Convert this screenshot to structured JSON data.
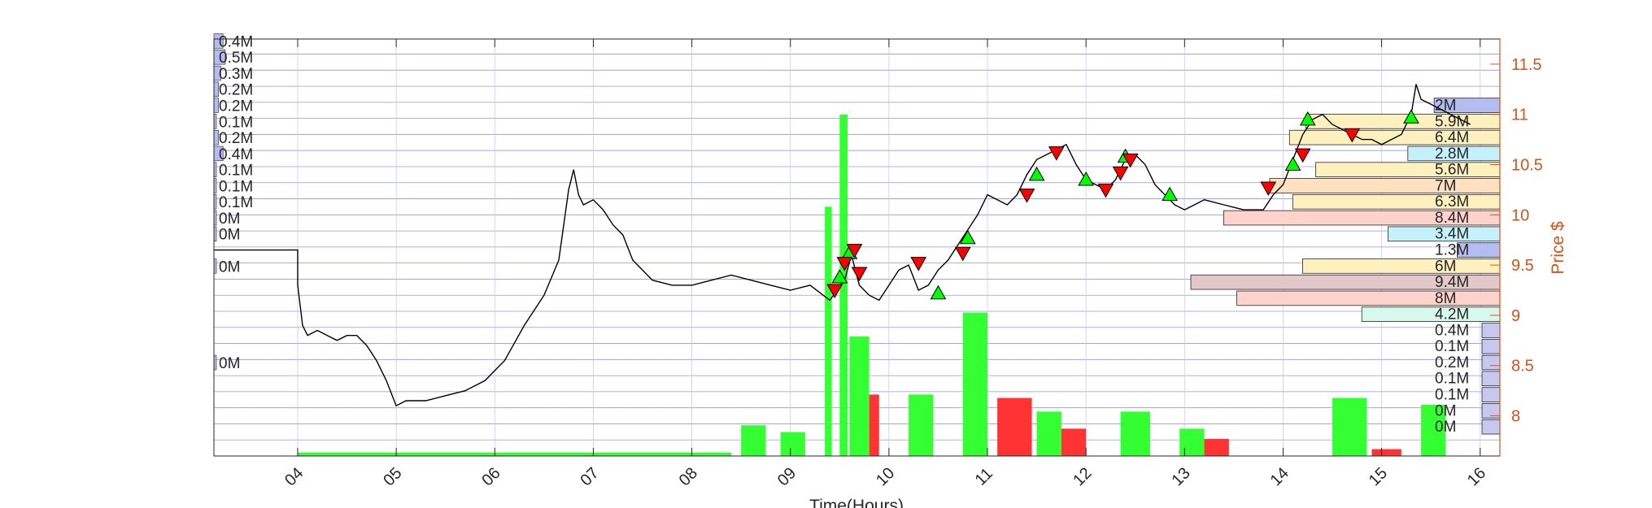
{
  "chart_data": {
    "type": "line",
    "xlabel": "Time(Hours)",
    "ylabel": "Price $",
    "xlim": [
      3.15,
      16.2
    ],
    "ylim": [
      7.6,
      11.75
    ],
    "grid": "horizontal",
    "x_ticks": [
      "04",
      "05",
      "06",
      "07",
      "08",
      "09",
      "10",
      "11",
      "12",
      "13",
      "14",
      "15",
      "16"
    ],
    "y_ticks": [
      8,
      8.5,
      9,
      9.5,
      10,
      10.5,
      11,
      11.5
    ],
    "colors": {
      "price_line": "#000000",
      "axis_right": "#d95319",
      "grid": "#8080ff",
      "buy_marker": "#00ff00",
      "sell_marker": "#ff0000",
      "volume_up": "#33ff33",
      "volume_down": "#ff3333"
    },
    "price_series": {
      "name": "",
      "x": [
        3.15,
        4.0,
        4.0,
        4.05,
        4.1,
        4.2,
        4.3,
        4.4,
        4.5,
        4.6,
        4.7,
        4.8,
        4.9,
        5.0,
        5.1,
        5.3,
        5.5,
        5.7,
        5.9,
        6.1,
        6.3,
        6.5,
        6.65,
        6.75,
        6.8,
        6.85,
        6.9,
        7.0,
        7.1,
        7.2,
        7.3,
        7.4,
        7.6,
        7.8,
        8.0,
        8.2,
        8.4,
        8.6,
        8.8,
        9.0,
        9.2,
        9.4,
        9.55,
        9.62,
        9.7,
        9.8,
        9.9,
        10.0,
        10.1,
        10.2,
        10.3,
        10.4,
        10.5,
        10.6,
        10.7,
        10.8,
        10.9,
        11.0,
        11.1,
        11.2,
        11.3,
        11.4,
        11.5,
        11.6,
        11.7,
        11.8,
        11.9,
        12.0,
        12.1,
        12.2,
        12.3,
        12.4,
        12.5,
        12.6,
        12.7,
        12.8,
        12.9,
        13.0,
        13.1,
        13.2,
        13.4,
        13.6,
        13.8,
        13.9,
        14.0,
        14.1,
        14.2,
        14.3,
        14.4,
        14.5,
        14.6,
        14.7,
        14.8,
        14.9,
        15.0,
        15.1,
        15.2,
        15.3,
        15.35,
        15.4,
        15.5,
        15.6,
        15.7,
        15.8,
        15.9
      ],
      "y": [
        9.65,
        9.65,
        9.3,
        8.9,
        8.8,
        8.85,
        8.8,
        8.75,
        8.8,
        8.8,
        8.7,
        8.55,
        8.35,
        8.1,
        8.15,
        8.15,
        8.2,
        8.25,
        8.35,
        8.55,
        8.9,
        9.2,
        9.55,
        10.25,
        10.45,
        10.2,
        10.1,
        10.15,
        10.05,
        9.9,
        9.8,
        9.55,
        9.35,
        9.3,
        9.3,
        9.35,
        9.4,
        9.35,
        9.3,
        9.25,
        9.3,
        9.15,
        9.35,
        9.6,
        9.3,
        9.2,
        9.15,
        9.3,
        9.45,
        9.5,
        9.25,
        9.3,
        9.45,
        9.55,
        9.7,
        9.85,
        10.0,
        10.2,
        10.15,
        10.1,
        10.2,
        10.4,
        10.55,
        10.6,
        10.65,
        10.7,
        10.5,
        10.35,
        10.3,
        10.25,
        10.35,
        10.55,
        10.6,
        10.5,
        10.3,
        10.2,
        10.1,
        10.05,
        10.1,
        10.15,
        10.1,
        10.05,
        10.05,
        10.2,
        10.3,
        10.55,
        10.8,
        10.95,
        11.0,
        10.9,
        10.85,
        10.8,
        10.75,
        10.75,
        10.7,
        10.75,
        10.8,
        11.0,
        11.3,
        11.15,
        11.1,
        11.05,
        11.0,
        10.95,
        10.9
      ]
    },
    "buy_signals": {
      "x": [
        9.5,
        9.6,
        10.5,
        10.8,
        11.5,
        12.0,
        12.4,
        12.85,
        14.1,
        14.25,
        15.3
      ],
      "y": [
        9.38,
        9.62,
        9.22,
        9.77,
        10.4,
        10.35,
        10.58,
        10.2,
        10.5,
        10.95,
        10.97
      ]
    },
    "sell_signals": {
      "x": [
        9.45,
        9.55,
        9.65,
        9.7,
        10.3,
        10.75,
        11.4,
        11.7,
        12.2,
        12.35,
        12.45,
        13.85,
        14.2,
        14.7
      ],
      "y": [
        9.25,
        9.52,
        9.65,
        9.42,
        9.52,
        9.62,
        10.2,
        10.62,
        10.25,
        10.42,
        10.55,
        10.27,
        10.6,
        10.8
      ]
    },
    "volume_bars": [
      {
        "start": 4.0,
        "end": 8.4,
        "level": 0.01,
        "color": "#33ff33"
      },
      {
        "start": 8.5,
        "end": 8.75,
        "level": 0.09,
        "color": "#33ff33"
      },
      {
        "start": 8.9,
        "end": 9.15,
        "level": 0.07,
        "color": "#33ff33"
      },
      {
        "start": 9.35,
        "end": 9.42,
        "level": 0.73,
        "color": "#33ff33"
      },
      {
        "start": 9.5,
        "end": 9.58,
        "level": 1.0,
        "color": "#33ff33"
      },
      {
        "start": 9.6,
        "end": 9.8,
        "level": 0.35,
        "color": "#33ff33"
      },
      {
        "start": 9.8,
        "end": 9.9,
        "level": 0.18,
        "color": "#ff3333"
      },
      {
        "start": 10.2,
        "end": 10.45,
        "level": 0.18,
        "color": "#33ff33"
      },
      {
        "start": 10.75,
        "end": 11.0,
        "level": 0.42,
        "color": "#33ff33"
      },
      {
        "start": 11.1,
        "end": 11.45,
        "level": 0.17,
        "color": "#ff3333"
      },
      {
        "start": 11.5,
        "end": 11.75,
        "level": 0.13,
        "color": "#33ff33"
      },
      {
        "start": 11.75,
        "end": 12.0,
        "level": 0.08,
        "color": "#ff3333"
      },
      {
        "start": 12.35,
        "end": 12.65,
        "level": 0.13,
        "color": "#33ff33"
      },
      {
        "start": 12.95,
        "end": 13.2,
        "level": 0.08,
        "color": "#33ff33"
      },
      {
        "start": 13.2,
        "end": 13.45,
        "level": 0.05,
        "color": "#ff3333"
      },
      {
        "start": 14.5,
        "end": 14.85,
        "level": 0.17,
        "color": "#33ff33"
      },
      {
        "start": 14.9,
        "end": 15.2,
        "level": 0.02,
        "color": "#ff3333"
      },
      {
        "start": 15.4,
        "end": 15.65,
        "level": 0.15,
        "color": "#33ff33"
      }
    ],
    "volume_profile_left": [
      {
        "price": 11.73,
        "value": 0.4,
        "label": "0.4M"
      },
      {
        "price": 11.57,
        "value": 0.5,
        "label": "0.5M"
      },
      {
        "price": 11.41,
        "value": 0.3,
        "label": "0.3M"
      },
      {
        "price": 11.25,
        "value": 0.2,
        "label": "0.2M"
      },
      {
        "price": 11.09,
        "value": 0.2,
        "label": "0.2M"
      },
      {
        "price": 10.93,
        "value": 0.1,
        "label": "0.1M"
      },
      {
        "price": 10.77,
        "value": 0.2,
        "label": "0.2M"
      },
      {
        "price": 10.61,
        "value": 0.4,
        "label": "0.4M"
      },
      {
        "price": 10.45,
        "value": 0.1,
        "label": "0.1M"
      },
      {
        "price": 10.29,
        "value": 0.1,
        "label": "0.1M"
      },
      {
        "price": 10.13,
        "value": 0.1,
        "label": "0.1M"
      },
      {
        "price": 9.97,
        "value": 0.0,
        "label": "0M"
      },
      {
        "price": 9.81,
        "value": 0.0,
        "label": "0M"
      },
      {
        "price": 9.49,
        "value": 0.0,
        "label": "0M"
      },
      {
        "price": 8.53,
        "value": 0.0,
        "label": "0M"
      }
    ],
    "volume_profile_right": [
      {
        "price": 11.09,
        "value": 2.0,
        "label": "2M",
        "color": "#b4bcf0"
      },
      {
        "price": 10.93,
        "value": 5.9,
        "label": "5.9M",
        "color": "#fff1bf"
      },
      {
        "price": 10.77,
        "value": 6.4,
        "label": "6.4M",
        "color": "#fff1bf"
      },
      {
        "price": 10.61,
        "value": 2.8,
        "label": "2.8M",
        "color": "#c4f1fb"
      },
      {
        "price": 10.45,
        "value": 5.6,
        "label": "5.6M",
        "color": "#fff1bf"
      },
      {
        "price": 10.29,
        "value": 7.0,
        "label": "7M",
        "color": "#ffe0c0"
      },
      {
        "price": 10.13,
        "value": 6.3,
        "label": "6.3M",
        "color": "#fff1bf"
      },
      {
        "price": 9.97,
        "value": 8.4,
        "label": "8.4M",
        "color": "#ffd2cc"
      },
      {
        "price": 9.81,
        "value": 3.4,
        "label": "3.4M",
        "color": "#c4f1fb"
      },
      {
        "price": 9.65,
        "value": 1.3,
        "label": "1.3M",
        "color": "#b4bcf0"
      },
      {
        "price": 9.49,
        "value": 6.0,
        "label": "6M",
        "color": "#fff1bf"
      },
      {
        "price": 9.33,
        "value": 9.4,
        "label": "9.4M",
        "color": "#e2c8c8"
      },
      {
        "price": 9.17,
        "value": 8.0,
        "label": "8M",
        "color": "#ffd2cc"
      },
      {
        "price": 9.01,
        "value": 4.2,
        "label": "4.2M",
        "color": "#d8f8ee"
      },
      {
        "price": 8.85,
        "value": 0.4,
        "label": "0.4M",
        "color": "#c7c8f0"
      },
      {
        "price": 8.69,
        "value": 0.1,
        "label": "0.1M",
        "color": "#c7c8f0"
      },
      {
        "price": 8.53,
        "value": 0.2,
        "label": "0.2M",
        "color": "#c7c8f0"
      },
      {
        "price": 8.37,
        "value": 0.1,
        "label": "0.1M",
        "color": "#c7c8f0"
      },
      {
        "price": 8.21,
        "value": 0.1,
        "label": "0.1M",
        "color": "#c7c8f0"
      },
      {
        "price": 8.05,
        "value": 0.0,
        "label": "0M",
        "color": "#c7c8f0"
      },
      {
        "price": 7.89,
        "value": 0.0,
        "label": "0M",
        "color": "#c7c8f0"
      }
    ]
  }
}
